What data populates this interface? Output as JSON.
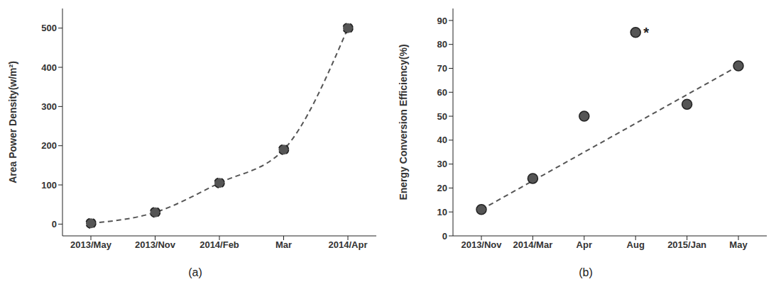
{
  "chart_data": [
    {
      "type": "line",
      "panel_label": "(a)",
      "y_label": "Area Power Density(w/m²)",
      "categories": [
        "2013/May",
        "2013/Nov",
        "2014/Feb",
        "Mar",
        "2014/Apr"
      ],
      "series": [
        {
          "values": [
            2,
            30,
            105,
            190,
            500
          ],
          "color": "#555555",
          "line_style": "dashed",
          "marker": "circle"
        }
      ],
      "ylim": [
        -30,
        550
      ],
      "yticks": [
        0,
        100,
        200,
        300,
        400,
        500
      ]
    },
    {
      "type": "line",
      "panel_label": "(b)",
      "y_label": "Energy Conversion Efficiency(%)",
      "categories": [
        "2013/Nov",
        "2014/Mar",
        "Apr",
        "Aug",
        "2015/Jan",
        "May"
      ],
      "series": [
        {
          "values": [
            11,
            24,
            50,
            85,
            55,
            71
          ],
          "color": "#555555",
          "line_style": "none",
          "marker": "circle"
        },
        {
          "values": [
            11,
            null,
            null,
            null,
            null,
            71
          ],
          "color": "#555555",
          "line_style": "dashed",
          "marker": "none"
        }
      ],
      "ylim": [
        0,
        95
      ],
      "yticks": [
        0,
        10,
        20,
        30,
        40,
        50,
        60,
        70,
        80,
        90
      ],
      "annotations": [
        {
          "text": "*",
          "x": "Aug",
          "y": 85
        }
      ]
    }
  ]
}
